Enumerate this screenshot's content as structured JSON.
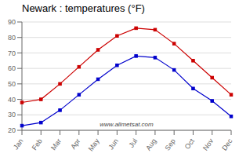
{
  "chart_data": {
    "type": "line",
    "title": "Newark : temperatures (°F)",
    "categories": [
      "Jan",
      "Feb",
      "Mar",
      "Apr",
      "May",
      "Jun",
      "Jul",
      "Aug",
      "Sep",
      "Oct",
      "Nov",
      "Dec"
    ],
    "series": [
      {
        "color": "#cc0000",
        "values": [
          38,
          40,
          50,
          61,
          72,
          81,
          86,
          85,
          76,
          65,
          54,
          43
        ],
        "marker": "square",
        "line_style": "solid"
      },
      {
        "color": "#0000cc",
        "values": [
          23,
          25,
          33,
          43,
          53,
          62,
          68,
          67,
          59,
          47,
          39,
          29
        ],
        "marker": "square",
        "line_style": "solid"
      }
    ],
    "ylim": [
      20,
      90
    ],
    "yticks": [
      20,
      30,
      40,
      50,
      60,
      70,
      80,
      90
    ],
    "grid": true,
    "annotations": [
      "www.allmetsat.com"
    ]
  }
}
